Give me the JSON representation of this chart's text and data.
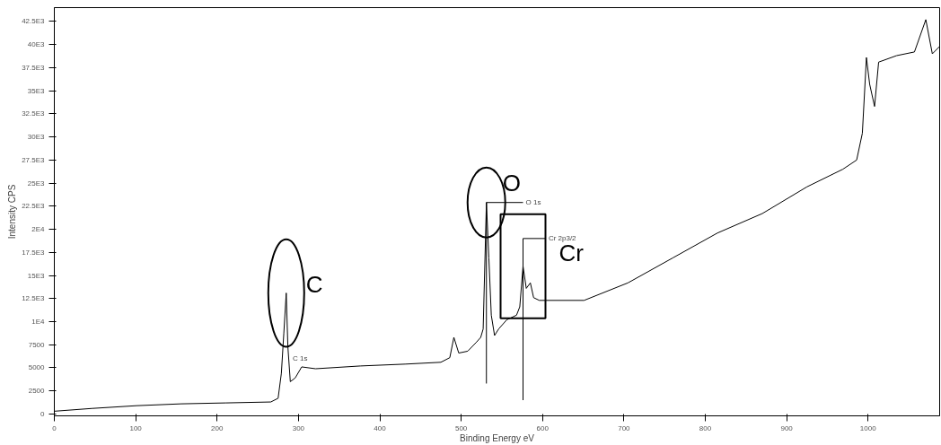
{
  "chart_data": {
    "type": "line",
    "xlabel": "Binding Energy eV",
    "ylabel": "Intensity CPS",
    "color": "#000000",
    "grid": false,
    "x": [
      0,
      46,
      101,
      156,
      211,
      266,
      275,
      279,
      282,
      285,
      287,
      290,
      296,
      304,
      321,
      376,
      431,
      475,
      486,
      491,
      497,
      508,
      519,
      524,
      527,
      531,
      534,
      537,
      541,
      546,
      556,
      568,
      572,
      576,
      580,
      585,
      589,
      596,
      651,
      705,
      760,
      815,
      870,
      925,
      969,
      986,
      993,
      998,
      1002,
      1008,
      1013,
      1035,
      1057,
      1071,
      1079,
      1088
    ],
    "values": [
      300,
      600,
      900,
      1100,
      1200,
      1300,
      1700,
      4400,
      8700,
      13100,
      7300,
      3500,
      3900,
      5100,
      4900,
      5200,
      5400,
      5600,
      6100,
      8300,
      6600,
      6800,
      7800,
      8300,
      9200,
      22900,
      16900,
      10700,
      8500,
      9200,
      10200,
      10700,
      11600,
      16000,
      13600,
      14200,
      12600,
      12300,
      12300,
      14200,
      16900,
      19600,
      21700,
      24600,
      26500,
      27500,
      30400,
      38600,
      35700,
      33300,
      38100,
      38800,
      39200,
      42700,
      39000,
      39800
    ],
    "xlim": [
      0,
      1088
    ],
    "xticks": [
      0,
      100,
      200,
      300,
      400,
      500,
      600,
      700,
      800,
      900,
      1000
    ],
    "ylim": [
      -200,
      44000
    ],
    "yticks": [
      0,
      2500,
      5000,
      7500,
      {
        "value": 10000,
        "label": "1E4"
      },
      {
        "value": 12500,
        "label": "12.5E3"
      },
      {
        "value": 15000,
        "label": "15E3"
      },
      {
        "value": 17500,
        "label": "17.5E3"
      },
      {
        "value": 20000,
        "label": "2E4"
      },
      {
        "value": 22500,
        "label": "22.5E3"
      },
      {
        "value": 25000,
        "label": "25E3"
      },
      {
        "value": 27500,
        "label": "27.5E3"
      },
      {
        "value": 30000,
        "label": "30E3"
      },
      {
        "value": 32500,
        "label": "32.5E3"
      },
      {
        "value": 35000,
        "label": "35E3"
      },
      {
        "value": 37500,
        "label": "37.5E3"
      },
      {
        "value": 40000,
        "label": "40E3"
      },
      {
        "value": 42500,
        "label": "42.5E3"
      }
    ],
    "annotations": [
      {
        "text": "C",
        "x": 285,
        "y": 13100
      },
      {
        "text": "C 1s",
        "x": 293,
        "y": 6000
      },
      {
        "text": "O",
        "x": 531,
        "y": 22900
      },
      "O 1s",
      {
        "text": "Cr",
        "x": 576,
        "y": 16000
      },
      "Cr 2p3/2"
    ]
  }
}
